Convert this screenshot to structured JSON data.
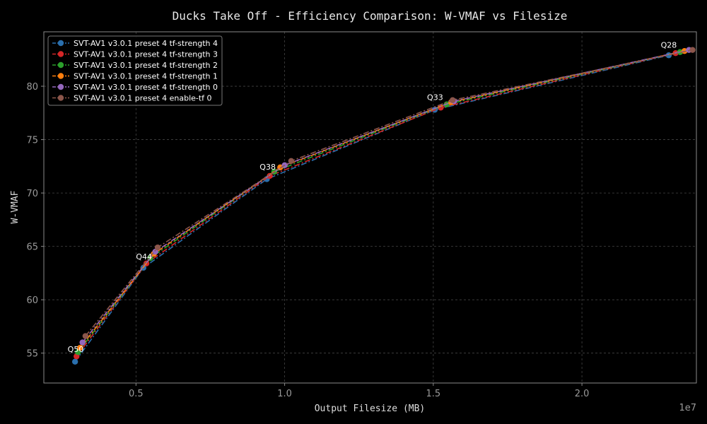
{
  "chart_data": {
    "type": "line",
    "title": "Ducks Take Off - Efficiency Comparison: W-VMAF vs Filesize",
    "xlabel": "Output Filesize (MB)",
    "ylabel": "W-VMAF",
    "x_offset_text": "1e7",
    "xlim": [
      0.19,
      2.385
    ],
    "ylim": [
      52.2,
      85.1
    ],
    "xticks": [
      0.5,
      1.0,
      1.5,
      2.0
    ],
    "xtick_labels": [
      "0.5",
      "1.0",
      "1.5",
      "2.0"
    ],
    "yticks": [
      55,
      60,
      65,
      70,
      75,
      80
    ],
    "ytick_labels": [
      "55",
      "60",
      "65",
      "70",
      "75",
      "80"
    ],
    "grid": true,
    "legend_position": "top-left",
    "qp_labels": [
      {
        "text": "Q50",
        "x": 0.297,
        "y": 55.1
      },
      {
        "text": "Q44",
        "x": 0.527,
        "y": 63.8
      },
      {
        "text": "Q38",
        "x": 0.943,
        "y": 72.2
      },
      {
        "text": "Q33",
        "x": 1.506,
        "y": 78.7
      },
      {
        "text": "Q28",
        "x": 2.292,
        "y": 83.6
      }
    ],
    "series": [
      {
        "name": "SVT-AV1 v3.0.1 preset 4 tf-strength 4",
        "color": "#2a6fad",
        "x": [
          0.295,
          0.525,
          0.94,
          1.505,
          2.292
        ],
        "y": [
          54.2,
          63.0,
          71.3,
          77.8,
          82.9
        ]
      },
      {
        "name": "SVT-AV1 v3.0.1 preset 4 tf-strength 3",
        "color": "#d62728",
        "x": [
          0.3,
          0.535,
          0.95,
          1.525,
          2.315
        ],
        "y": [
          54.7,
          63.4,
          71.6,
          78.0,
          83.1
        ]
      },
      {
        "name": "SVT-AV1 v3.0.1 preset 4 tf-strength 2",
        "color": "#2ca02c",
        "x": [
          0.305,
          0.548,
          0.965,
          1.545,
          2.33
        ],
        "y": [
          55.1,
          63.9,
          72.0,
          78.3,
          83.2
        ]
      },
      {
        "name": "SVT-AV1 v3.0.1 preset 4 tf-strength 1",
        "color": "#ff7f0e",
        "x": [
          0.312,
          0.56,
          0.985,
          1.56,
          2.345
        ],
        "y": [
          55.5,
          64.3,
          72.4,
          78.5,
          83.3
        ]
      },
      {
        "name": "SVT-AV1 v3.0.1 preset 4 tf-strength 0",
        "color": "#9467bd",
        "x": [
          0.32,
          0.565,
          1.0,
          1.57,
          2.36
        ],
        "y": [
          56.0,
          64.5,
          72.6,
          78.6,
          83.4
        ]
      },
      {
        "name": "SVT-AV1 v3.0.1 preset 4 enable-tf 0",
        "color": "#8c564b",
        "x": [
          0.33,
          0.573,
          1.022,
          1.565,
          2.372
        ],
        "y": [
          56.6,
          64.9,
          73.0,
          78.7,
          83.4
        ]
      }
    ]
  },
  "colors": {
    "background": "#000000",
    "axes_edge": "#8a8a8a",
    "grid": "#444444",
    "text": "#dddddd",
    "tick_text": "#9a9a9a"
  }
}
